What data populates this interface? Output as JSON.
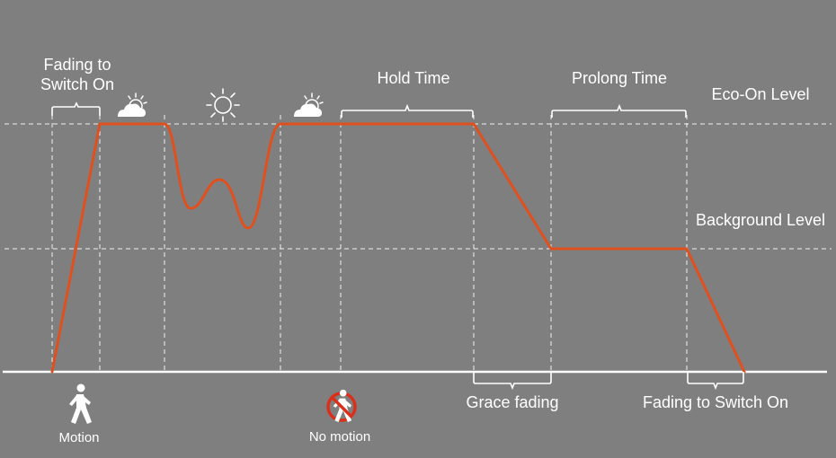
{
  "labels": {
    "fading_to_switch_on_top_line1": "Fading to",
    "fading_to_switch_on_top_line2": "Switch On",
    "hold_time": "Hold Time",
    "prolong_time": "Prolong Time",
    "eco_on_level": "Eco-On Level",
    "background_level": "Background Level",
    "grace_fading": "Grace fading",
    "fading_to_switch_on_bottom": "Fading to Switch On",
    "motion": "Motion",
    "no_motion": "No motion"
  },
  "icons": [
    "partly-cloudy-icon",
    "sun-icon",
    "partly-cloudy-icon",
    "walking-person-icon",
    "no-walking-person-icon"
  ],
  "colors": {
    "background": "#7f7f7f",
    "light_curve": "#e0501f",
    "lines": "#ffffff",
    "prohibit": "#d9301c"
  }
}
